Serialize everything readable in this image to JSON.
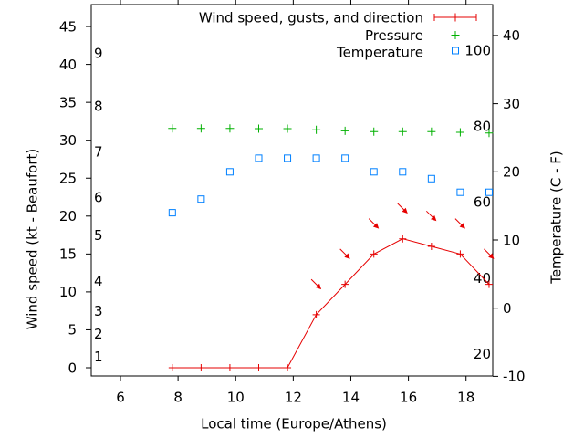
{
  "window": {
    "background": "#ffffff"
  },
  "colors": {
    "wind": "#e60000",
    "pressure": "#00b000",
    "temperature": "#0080ff",
    "axis": "#000000"
  },
  "chart_data": {
    "type": "line",
    "title": "",
    "xlabel": "Local time (Europe/Athens)",
    "ylabel_left": "Wind speed (kt - Beaufort)",
    "ylabel_right": "Temperature (C - F)",
    "grid": false,
    "legend": {
      "position": "top-right-inside",
      "entries": [
        "Wind speed, gusts, and direction",
        "Pressure",
        "Temperature"
      ]
    },
    "x_unit": "hour of day (decimal)",
    "x_range": [
      5,
      19
    ],
    "x_ticks": [
      6,
      8,
      10,
      12,
      14,
      16,
      18
    ],
    "y_left_range_kt": [
      0,
      45
    ],
    "y_left_ticks_kt": [
      0,
      5,
      10,
      15,
      20,
      25,
      30,
      35,
      40,
      45
    ],
    "beaufort_labels": [
      {
        "label": "1",
        "kt": 1
      },
      {
        "label": "2",
        "kt": 4
      },
      {
        "label": "3",
        "kt": 7
      },
      {
        "label": "4",
        "kt": 11
      },
      {
        "label": "5",
        "kt": 17
      },
      {
        "label": "6",
        "kt": 22
      },
      {
        "label": "7",
        "kt": 28
      },
      {
        "label": "8",
        "kt": 34
      },
      {
        "label": "9",
        "kt": 41
      }
    ],
    "y_right_range_c": [
      -10,
      40
    ],
    "y_right_ticks_c": [
      -10,
      0,
      10,
      20,
      30,
      40
    ],
    "fahrenheit_labels": [
      {
        "label": "100",
        "c": 37.78
      },
      {
        "label": "80",
        "c": 26.67
      },
      {
        "label": "60",
        "c": 15.56
      },
      {
        "label": "40",
        "c": 4.44
      },
      {
        "label": "20",
        "c": -6.67
      }
    ],
    "x_hours": [
      7.8,
      8.8,
      9.8,
      10.8,
      11.8,
      12.8,
      13.8,
      14.8,
      15.8,
      16.8,
      17.8,
      18.8
    ],
    "series": [
      {
        "name": "Wind speed, gusts, and direction",
        "axis": "left-kt",
        "marker": "plus-with-line",
        "color_key": "wind",
        "wind_kt": [
          0,
          0,
          0,
          0,
          0,
          7,
          11,
          15,
          17,
          16,
          15,
          11
        ],
        "gust_kt": [
          null,
          null,
          null,
          null,
          null,
          11,
          15,
          19,
          21,
          20,
          19,
          15
        ],
        "gust_arrow_angle_deg_screen": 45,
        "wind_from_direction": "NW"
      },
      {
        "name": "Pressure",
        "axis": "unlabeled (plotted position read on right C axis)",
        "marker": "plus",
        "color_key": "pressure",
        "y_position_c_equiv": [
          26.37,
          26.37,
          26.37,
          26.33,
          26.33,
          26.16,
          26.02,
          25.89,
          25.89,
          25.89,
          25.8,
          25.7
        ]
      },
      {
        "name": "Temperature",
        "axis": "right-c",
        "marker": "open-square",
        "color_key": "temperature",
        "temp_c": [
          14,
          16,
          20,
          22,
          22,
          22,
          22,
          20,
          20,
          19,
          17,
          17
        ]
      }
    ]
  }
}
